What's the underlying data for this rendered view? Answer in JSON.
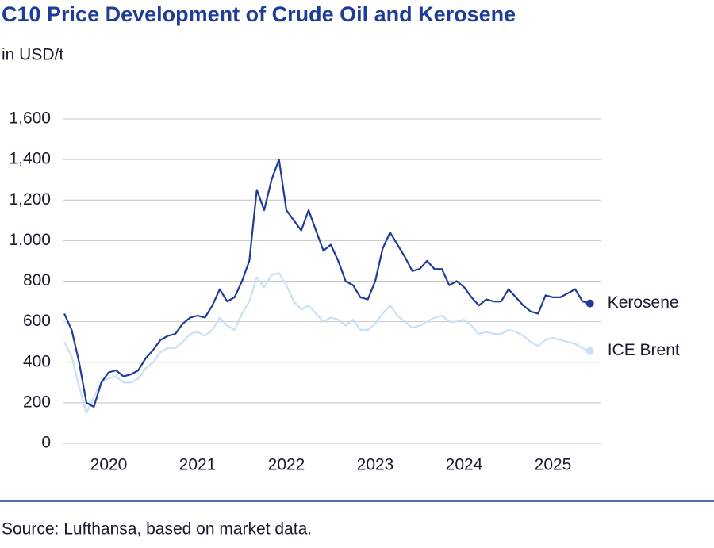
{
  "chart_data": {
    "type": "line",
    "title": "C10 Price Development of Crude Oil and Kerosene",
    "subtitle": "in USD/t",
    "source": "Source: Lufthansa, based on market data.",
    "x": [
      2020,
      2020.083,
      2020.167,
      2020.25,
      2020.333,
      2020.417,
      2020.5,
      2020.583,
      2020.667,
      2020.75,
      2020.833,
      2020.917,
      2021,
      2021.083,
      2021.167,
      2021.25,
      2021.333,
      2021.417,
      2021.5,
      2021.583,
      2021.667,
      2021.75,
      2021.833,
      2021.917,
      2022,
      2022.083,
      2022.167,
      2022.25,
      2022.333,
      2022.417,
      2022.5,
      2022.583,
      2022.667,
      2022.75,
      2022.833,
      2022.917,
      2023,
      2023.083,
      2023.167,
      2023.25,
      2023.333,
      2023.417,
      2023.5,
      2023.583,
      2023.667,
      2023.75,
      2023.833,
      2023.917,
      2024,
      2024.083,
      2024.167,
      2024.25,
      2024.333,
      2024.417,
      2024.5,
      2024.583,
      2024.667,
      2024.75,
      2024.833,
      2024.917,
      2025,
      2025.083,
      2025.167,
      2025.25,
      2025.333,
      2025.417,
      2025.5,
      2025.583,
      2025.667,
      2025.75,
      2025.833,
      2025.917
    ],
    "series": [
      {
        "name": "Kerosene",
        "color": "#1f3c96",
        "values": [
          640,
          560,
          400,
          200,
          180,
          300,
          350,
          360,
          330,
          340,
          360,
          420,
          460,
          510,
          530,
          540,
          590,
          620,
          630,
          620,
          680,
          760,
          700,
          720,
          800,
          900,
          1250,
          1150,
          1300,
          1400,
          1150,
          1100,
          1050,
          1150,
          1050,
          950,
          980,
          900,
          800,
          780,
          720,
          710,
          800,
          960,
          1040,
          980,
          920,
          850,
          860,
          900,
          860,
          860,
          780,
          800,
          770,
          720,
          680,
          710,
          700,
          700,
          760,
          720,
          680,
          650,
          640,
          730,
          720,
          720,
          740,
          760,
          700,
          690
        ]
      },
      {
        "name": "ICE Brent",
        "color": "#c9dff5",
        "values": [
          500,
          430,
          280,
          150,
          230,
          300,
          320,
          330,
          300,
          300,
          320,
          370,
          400,
          450,
          470,
          470,
          500,
          540,
          550,
          530,
          560,
          620,
          580,
          560,
          640,
          700,
          820,
          770,
          830,
          840,
          780,
          700,
          660,
          680,
          640,
          600,
          620,
          610,
          580,
          610,
          560,
          560,
          590,
          640,
          680,
          630,
          600,
          570,
          580,
          600,
          620,
          630,
          600,
          600,
          610,
          580,
          540,
          550,
          540,
          540,
          560,
          550,
          530,
          500,
          480,
          510,
          520,
          510,
          500,
          490,
          470,
          455
        ]
      }
    ],
    "xlim": [
      2020,
      2026
    ],
    "xticks": [
      {
        "value": 2020.5,
        "label": "2020"
      },
      {
        "value": 2021.5,
        "label": "2021"
      },
      {
        "value": 2022.5,
        "label": "2022"
      },
      {
        "value": 2023.5,
        "label": "2023"
      },
      {
        "value": 2024.5,
        "label": "2024"
      },
      {
        "value": 2025.5,
        "label": "2025"
      }
    ],
    "ylim": [
      0,
      1600
    ],
    "yticks": [
      0,
      200,
      400,
      600,
      800,
      {
        "value": 1000,
        "label": "1,000"
      },
      {
        "value": 1200,
        "label": "1,200"
      },
      {
        "value": 1400,
        "label": "1,400"
      },
      {
        "value": 1600,
        "label": "1,600"
      }
    ],
    "grid": true
  }
}
